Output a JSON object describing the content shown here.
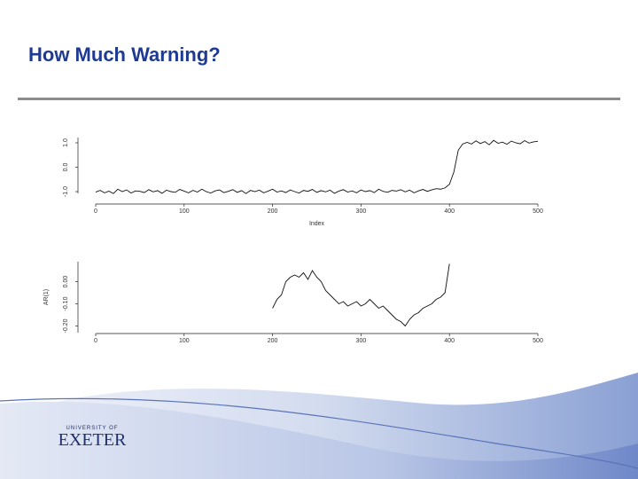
{
  "slide": {
    "title": "How Much Warning?",
    "logo_top": "UNIVERSITY OF",
    "logo_name": "EXETER"
  },
  "chart_data": [
    {
      "type": "line",
      "x_label": "Index",
      "color": "#111111",
      "x": [
        0,
        5,
        10,
        15,
        20,
        25,
        30,
        35,
        40,
        45,
        50,
        55,
        60,
        65,
        70,
        75,
        80,
        85,
        90,
        95,
        100,
        105,
        110,
        115,
        120,
        125,
        130,
        135,
        140,
        145,
        150,
        155,
        160,
        165,
        170,
        175,
        180,
        185,
        190,
        195,
        200,
        205,
        210,
        215,
        220,
        225,
        230,
        235,
        240,
        245,
        250,
        255,
        260,
        265,
        270,
        275,
        280,
        285,
        290,
        295,
        300,
        305,
        310,
        315,
        320,
        325,
        330,
        335,
        340,
        345,
        350,
        355,
        360,
        365,
        370,
        375,
        380,
        385,
        390,
        395,
        400,
        405,
        410,
        415,
        420,
        425,
        430,
        435,
        440,
        445,
        450,
        455,
        460,
        465,
        470,
        475,
        480,
        485,
        490,
        495,
        500
      ],
      "values": [
        -1.02,
        -0.95,
        -1.05,
        -0.98,
        -1.08,
        -0.9,
        -1.0,
        -0.93,
        -1.06,
        -0.97,
        -0.99,
        -1.04,
        -0.92,
        -1.01,
        -0.96,
        -1.07,
        -0.94,
        -1.0,
        -1.03,
        -0.91,
        -0.98,
        -1.05,
        -0.95,
        -1.02,
        -0.9,
        -1.0,
        -1.06,
        -0.97,
        -0.93,
        -1.04,
        -0.99,
        -0.92,
        -1.03,
        -0.96,
        -1.08,
        -0.95,
        -1.0,
        -0.94,
        -1.05,
        -0.98,
        -0.9,
        -1.02,
        -0.97,
        -1.04,
        -0.93,
        -1.0,
        -1.06,
        -0.95,
        -0.99,
        -0.91,
        -1.03,
        -0.96,
        -1.01,
        -0.94,
        -1.07,
        -0.98,
        -0.92,
        -1.02,
        -0.97,
        -1.05,
        -0.93,
        -1.0,
        -0.96,
        -1.04,
        -0.9,
        -0.99,
        -1.03,
        -0.95,
        -0.98,
        -0.92,
        -1.01,
        -0.94,
        -1.05,
        -0.97,
        -0.91,
        -0.99,
        -0.93,
        -0.88,
        -0.9,
        -0.85,
        -0.7,
        -0.2,
        0.7,
        0.95,
        1.02,
        0.95,
        1.08,
        0.97,
        1.05,
        0.92,
        1.1,
        0.98,
        1.03,
        0.94,
        1.07,
        1.0,
        0.96,
        1.09,
        0.99,
        1.04,
        1.06
      ],
      "xlim": [
        0,
        500
      ],
      "xticks": [
        0,
        100,
        200,
        300,
        400,
        500
      ],
      "ylim": [
        -1.2,
        1.4
      ],
      "yticks": [
        {
          "value": -1,
          "label": "-1.0"
        },
        {
          "value": 0,
          "label": "0.0"
        },
        {
          "value": 1,
          "label": "1.0"
        }
      ]
    },
    {
      "type": "line",
      "y_label": "AR(1)",
      "color": "#111111",
      "x": [
        200,
        205,
        210,
        215,
        220,
        225,
        230,
        235,
        240,
        245,
        250,
        255,
        260,
        265,
        270,
        275,
        280,
        285,
        290,
        295,
        300,
        305,
        310,
        315,
        320,
        325,
        330,
        335,
        340,
        345,
        350,
        355,
        360,
        365,
        370,
        375,
        380,
        385,
        390,
        395,
        400
      ],
      "values": [
        -0.12,
        -0.08,
        -0.06,
        0.0,
        0.02,
        0.03,
        0.02,
        0.04,
        0.01,
        0.05,
        0.02,
        0.0,
        -0.04,
        -0.06,
        -0.08,
        -0.1,
        -0.09,
        -0.11,
        -0.1,
        -0.09,
        -0.11,
        -0.1,
        -0.08,
        -0.1,
        -0.12,
        -0.11,
        -0.13,
        -0.15,
        -0.17,
        -0.18,
        -0.2,
        -0.17,
        -0.15,
        -0.14,
        -0.12,
        -0.11,
        -0.1,
        -0.08,
        -0.07,
        -0.05,
        0.08
      ],
      "xlim": [
        0,
        500
      ],
      "xticks": [
        0,
        100,
        200,
        300,
        400,
        500
      ],
      "ylim": [
        -0.23,
        0.09
      ],
      "yticks": [
        {
          "value": -0.2,
          "label": "-0.20"
        },
        {
          "value": -0.1,
          "label": "-0.10"
        },
        {
          "value": 0,
          "label": "0.00"
        }
      ]
    }
  ]
}
